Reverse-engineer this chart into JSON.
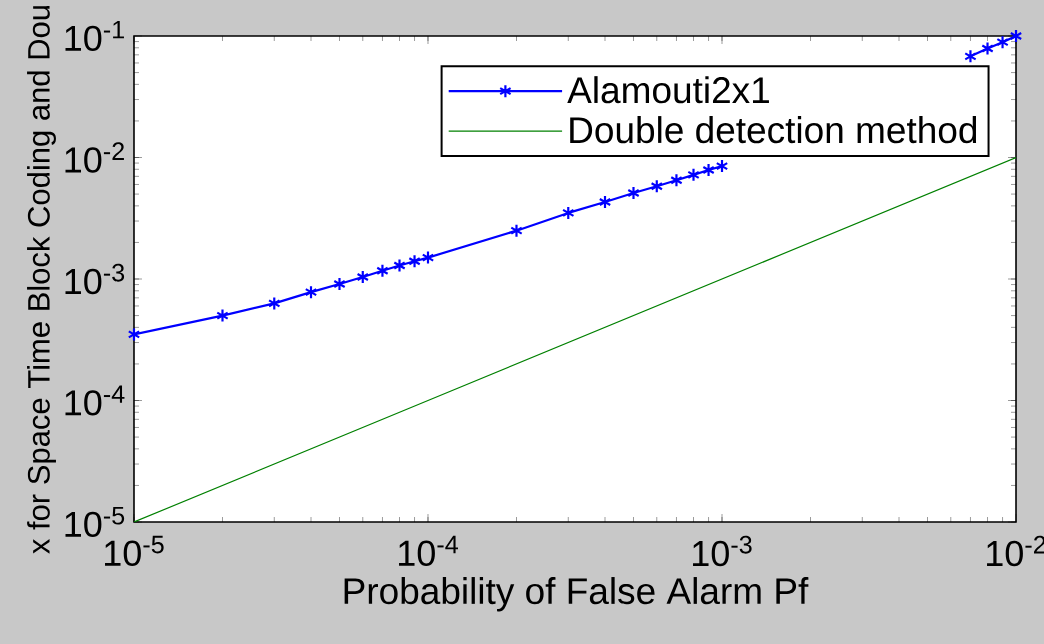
{
  "chart_data": {
    "type": "line",
    "xlabel": "Probability of False Alarm Pf",
    "ylabel": "x for Space Time Block Coding and Dou",
    "log": "xy",
    "xlim": [
      1e-05,
      0.01
    ],
    "ylim": [
      1e-05,
      0.1
    ],
    "xticks": [
      {
        "value": 1e-05,
        "label": "10$^{-5}$"
      },
      {
        "value": 0.0001,
        "label": "10$^{-4}$"
      },
      {
        "value": 0.001,
        "label": "10$^{-3}$"
      },
      {
        "value": 0.01,
        "label": "10$^{-2}$"
      }
    ],
    "yticks": [
      {
        "value": 1e-05,
        "label": "10$^{-5}$"
      },
      {
        "value": 0.0001,
        "label": "10$^{-4}$"
      },
      {
        "value": 0.001,
        "label": "10$^{-3}$"
      },
      {
        "value": 0.01,
        "label": "10$^{-2}$"
      },
      {
        "value": 0.1,
        "label": "10$^{-1}$"
      }
    ],
    "grid": false,
    "legend": "top right",
    "series": [
      {
        "name": "Alamouti2x1",
        "color": "#0000ff",
        "marker": "cross",
        "x": [
          1e-05,
          2e-05,
          3e-05,
          4e-05,
          5e-05,
          6e-05,
          7e-05,
          8e-05,
          9e-05,
          0.0001,
          0.0002,
          0.0003,
          0.0004,
          0.0005,
          0.0006,
          0.0007,
          0.0008,
          0.0009,
          0.001,
          0.002,
          0.003,
          0.004,
          0.005,
          0.006,
          0.007,
          0.008,
          0.009,
          0.01
        ],
        "values": [
          0.00035,
          0.0005,
          0.00063,
          0.00078,
          0.00091,
          0.00104,
          0.00117,
          0.00129,
          0.0014,
          0.0015,
          0.0025,
          0.0035,
          0.0043,
          0.0051,
          0.0058,
          0.0065,
          0.0072,
          0.0079,
          0.0085,
          null,
          null,
          null,
          null,
          null,
          0.068,
          0.079,
          0.089,
          0.1
        ]
      },
      {
        "name": "Double detection method",
        "color": "#008000",
        "marker": "none",
        "x": [
          1e-05,
          0.0001,
          0.001,
          0.01
        ],
        "values": [
          1e-05,
          0.0001,
          0.001,
          0.01
        ]
      }
    ]
  }
}
